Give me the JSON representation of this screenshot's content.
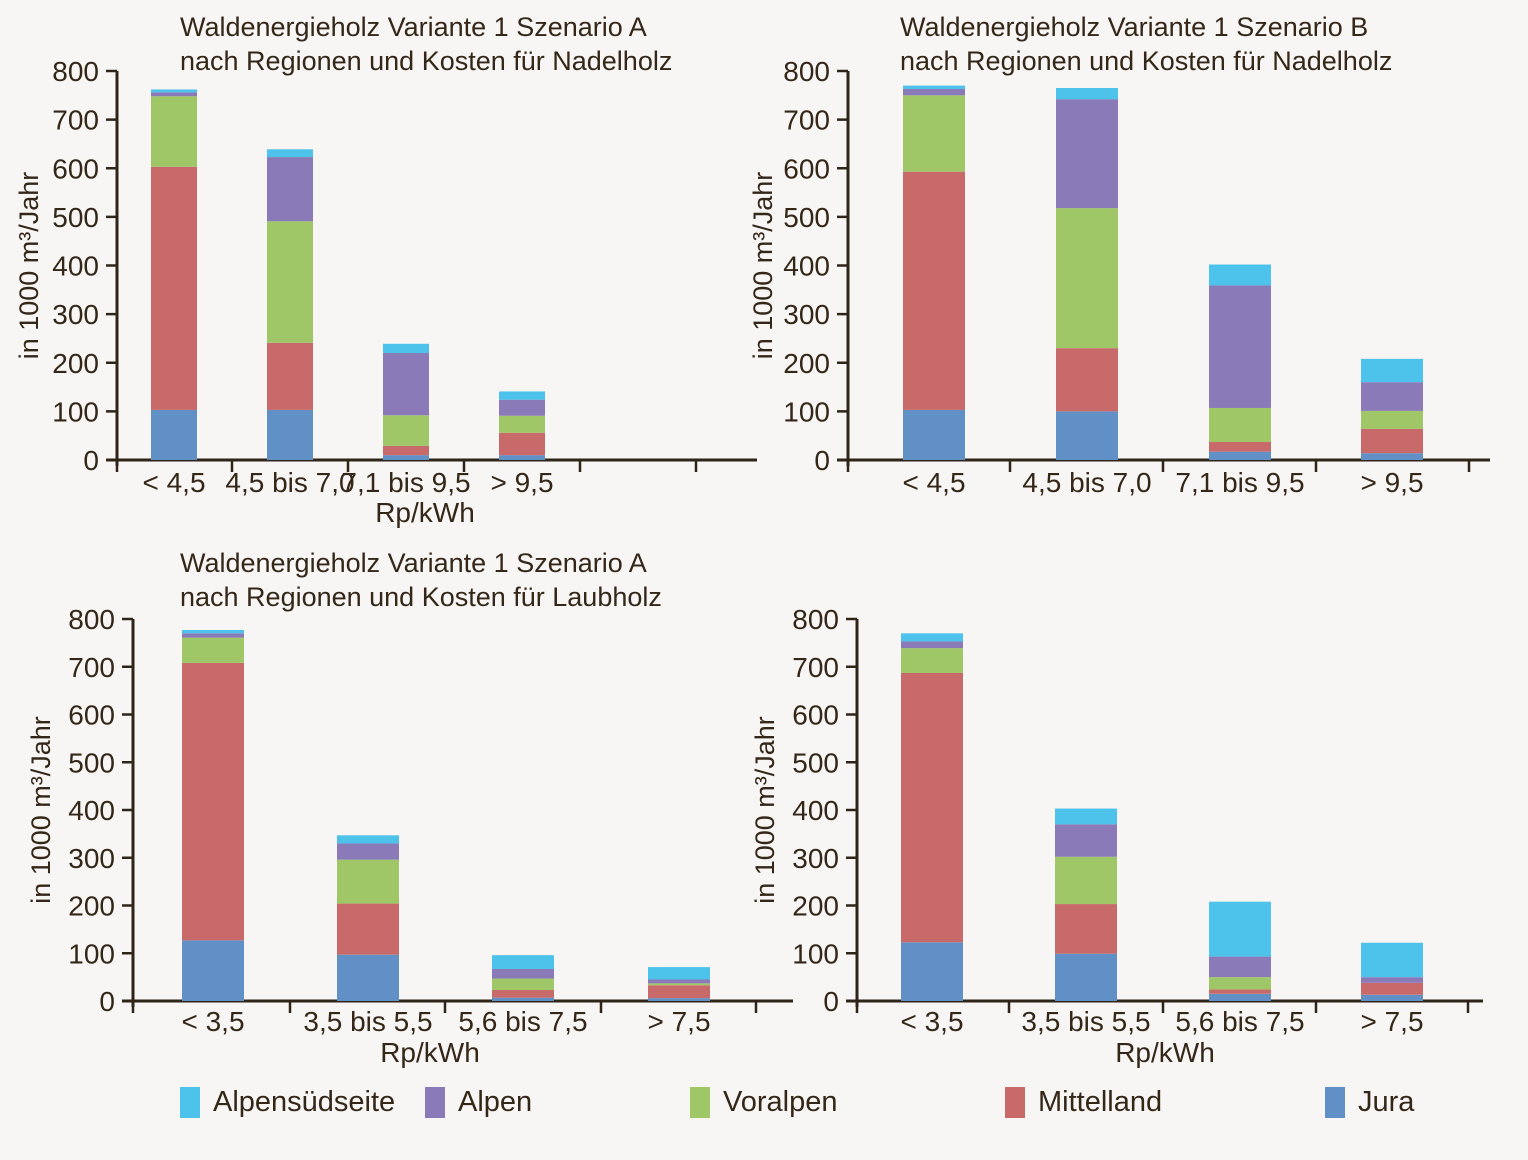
{
  "meta": {
    "background": "#F7F6F4",
    "text_color": "#352718",
    "axis_color": "#2F2418"
  },
  "legend": {
    "items": [
      {
        "label": "Alpensüdseite",
        "color": "#4DC2EA"
      },
      {
        "label": "Alpen",
        "color": "#8A7AB8"
      },
      {
        "label": "Voralpen",
        "color": "#9FC768"
      },
      {
        "label": "Mittelland",
        "color": "#C96A6A"
      },
      {
        "label": "Jura",
        "color": "#6190C6"
      }
    ]
  },
  "chart_data": [
    {
      "type": "bar",
      "stacked": true,
      "position": "top-left",
      "title_lines": [
        "Waldenergieholz Variante 1 Szenario A",
        "nach Regionen und Kosten für Nadelholz"
      ],
      "ylabel": "in 1000 m³/Jahr",
      "xlabel": "Rp/kWh",
      "ylim": [
        0,
        800
      ],
      "ytick_step": 100,
      "grid": false,
      "categories": [
        "< 4,5",
        "4,5 bis 7,0",
        "7,1 bis 9,5",
        "> 9,5"
      ],
      "series": [
        {
          "name": "Jura",
          "values": [
            103,
            103,
            10,
            10
          ]
        },
        {
          "name": "Mittelland",
          "values": [
            500,
            138,
            19,
            46
          ]
        },
        {
          "name": "Voralpen",
          "values": [
            145,
            250,
            63,
            35
          ]
        },
        {
          "name": "Alpen",
          "values": [
            8,
            132,
            128,
            33
          ]
        },
        {
          "name": "Alpensüdseite",
          "values": [
            6,
            16,
            19,
            17
          ]
        }
      ]
    },
    {
      "type": "bar",
      "stacked": true,
      "position": "top-right",
      "title_lines": [
        "Waldenergieholz Variante 1 Szenario B",
        "nach Regionen und Kosten für Nadelholz"
      ],
      "ylabel": "in 1000 m³/Jahr",
      "xlabel": "",
      "ylim": [
        0,
        800
      ],
      "ytick_step": 100,
      "grid": false,
      "categories": [
        "< 4,5",
        "4,5 bis 7,0",
        "7,1 bis 9,5",
        "> 9,5"
      ],
      "series": [
        {
          "name": "Jura",
          "values": [
            103,
            100,
            17,
            14
          ]
        },
        {
          "name": "Mittelland",
          "values": [
            490,
            130,
            20,
            50
          ]
        },
        {
          "name": "Voralpen",
          "values": [
            157,
            288,
            70,
            37
          ]
        },
        {
          "name": "Alpen",
          "values": [
            13,
            224,
            252,
            59
          ]
        },
        {
          "name": "Alpensüdseite",
          "values": [
            7,
            23,
            43,
            48
          ]
        }
      ]
    },
    {
      "type": "bar",
      "stacked": true,
      "position": "bottom-left",
      "title_lines": [
        "Waldenergieholz Variante 1 Szenario A",
        "nach Regionen und Kosten für Laubholz"
      ],
      "ylabel": "in 1000 m³/Jahr",
      "xlabel": "Rp/kWh",
      "ylim": [
        0,
        800
      ],
      "ytick_step": 100,
      "grid": false,
      "categories": [
        "< 3,5",
        "3,5 bis 5,5",
        "5,6 bis 7,5",
        "> 7,5"
      ],
      "series": [
        {
          "name": "Jura",
          "values": [
            127,
            97,
            7,
            6
          ]
        },
        {
          "name": "Mittelland",
          "values": [
            581,
            107,
            16,
            27
          ]
        },
        {
          "name": "Voralpen",
          "values": [
            53,
            92,
            24,
            4
          ]
        },
        {
          "name": "Alpen",
          "values": [
            9,
            34,
            20,
            8
          ]
        },
        {
          "name": "Alpensüdseite",
          "values": [
            7,
            17,
            29,
            26
          ]
        }
      ]
    },
    {
      "type": "bar",
      "stacked": true,
      "position": "bottom-right",
      "title_lines": [],
      "ylabel": "in 1000 m³/Jahr",
      "xlabel": "Rp/kWh",
      "ylim": [
        0,
        800
      ],
      "ytick_step": 100,
      "grid": false,
      "categories": [
        "< 3,5",
        "3,5 bis 5,5",
        "5,6 bis 7,5",
        "> 7,5"
      ],
      "series": [
        {
          "name": "Jura",
          "values": [
            123,
            99,
            15,
            13
          ]
        },
        {
          "name": "Mittelland",
          "values": [
            564,
            104,
            9,
            25
          ]
        },
        {
          "name": "Voralpen",
          "values": [
            52,
            99,
            26,
            0
          ]
        },
        {
          "name": "Alpen",
          "values": [
            14,
            68,
            43,
            12
          ]
        },
        {
          "name": "Alpensüdseite",
          "values": [
            17,
            33,
            115,
            72
          ]
        }
      ]
    }
  ]
}
